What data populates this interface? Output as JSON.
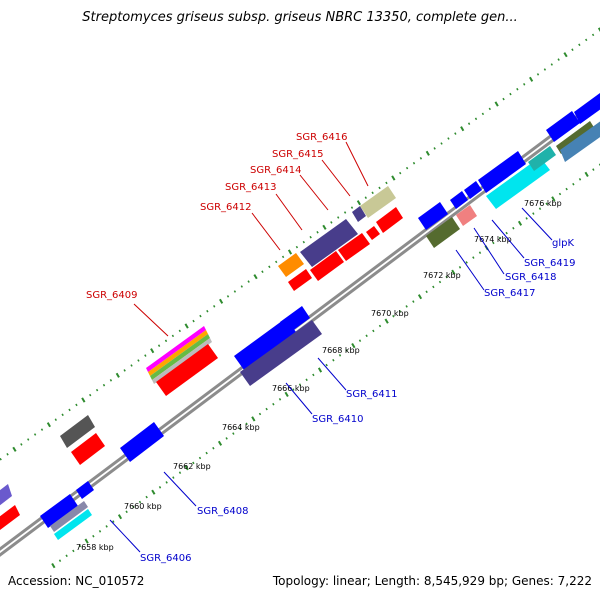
{
  "title": "Streptomyces griseus subsp. griseus NBRC 13350, complete gen...",
  "footer": {
    "accession": "Accession: NC_010572",
    "summary": "Topology: linear; Length: 8,545,929 bp; Genes: 7,222"
  },
  "colors": {
    "backbone": "#8c8c8c",
    "tick": "#2e8b2e",
    "label_upper": "#cc0000",
    "label_lower": "#0000cc"
  },
  "tick_labels": [
    "7658 kbp",
    "7660 kbp",
    "7662 kbp",
    "7664 kbp",
    "7666 kbp",
    "7668 kbp",
    "7670 kbp",
    "7672 kbp",
    "7674 kbp",
    "7676 kbp"
  ],
  "upper_labels": [
    "SGR_6409",
    "SGR_6412",
    "SGR_6413",
    "SGR_6414",
    "SGR_6415",
    "SGR_6416"
  ],
  "lower_labels": [
    "SGR_6406",
    "SGR_6408",
    "SGR_6410",
    "SGR_6411",
    "SGR_6417",
    "SGR_6418",
    "SGR_6419",
    "glpK"
  ]
}
